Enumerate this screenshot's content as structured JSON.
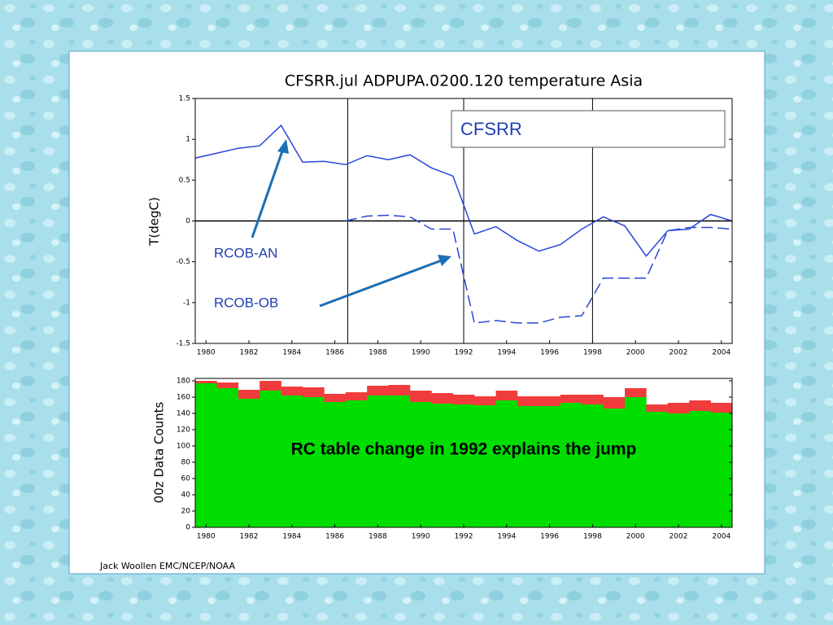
{
  "chart_data": [
    {
      "type": "line",
      "title": "CFSRR.jul ADPUPA.0200.120 temperature Asia",
      "ylabel": "T(degC)",
      "legend_label": "CFSRR",
      "annotations": [
        "RCOB-AN",
        "RCOB-OB"
      ],
      "x": [
        1979.5,
        1980.5,
        1981.5,
        1982.5,
        1983.5,
        1984.5,
        1985.5,
        1986.5,
        1987.5,
        1988.5,
        1989.5,
        1990.5,
        1991.5,
        1992.5,
        1993.5,
        1994.5,
        1995.5,
        1996.5,
        1997.5,
        1998.5,
        1999.5,
        2000.5,
        2001.5,
        2002.5,
        2003.5,
        2004.5
      ],
      "series": [
        {
          "color": "#2a45d8",
          "dashed": false,
          "values": [
            0.77,
            0.83,
            0.89,
            0.92,
            1.17,
            0.72,
            0.73,
            0.69,
            0.8,
            0.75,
            0.81,
            0.65,
            0.55,
            -0.16,
            -0.07,
            -0.24,
            -0.37,
            -0.29,
            -0.1,
            0.05,
            -0.06,
            -0.43,
            -0.12,
            -0.1,
            0.08,
            0.0
          ]
        },
        {
          "color": "#2a45d8",
          "dashed": true,
          "values": [
            null,
            null,
            null,
            null,
            null,
            null,
            null,
            0.0,
            0.06,
            0.07,
            0.05,
            -0.1,
            -0.1,
            -1.25,
            -1.22,
            -1.25,
            -1.25,
            -1.18,
            -1.16,
            -0.7,
            -0.7,
            -0.7,
            -0.12,
            -0.08,
            -0.08,
            -0.1
          ]
        }
      ],
      "vlines": [
        1986.6,
        1992,
        1998
      ],
      "xlim": [
        1979.5,
        2004.5
      ],
      "ylim": [
        -1.5,
        1.5
      ],
      "xticks": [
        1980,
        1982,
        1984,
        1986,
        1988,
        1990,
        1992,
        1994,
        1996,
        1998,
        2000,
        2002,
        2004
      ],
      "yticks": [
        -1.5,
        -1,
        -0.5,
        0,
        0.5,
        1,
        1.5
      ]
    },
    {
      "type": "bar",
      "stacked": true,
      "ylabel": "00z Data Counts",
      "annotation": "RC table change in 1992 explains the jump",
      "x": [
        1980,
        1981,
        1982,
        1983,
        1984,
        1985,
        1986,
        1987,
        1988,
        1989,
        1990,
        1991,
        1992,
        1993,
        1994,
        1995,
        1996,
        1997,
        1998,
        1999,
        2000,
        2001,
        2002,
        2003,
        2004
      ],
      "series": [
        {
          "color": "#00dd00",
          "values": [
            177,
            171,
            158,
            168,
            162,
            160,
            154,
            156,
            162,
            162,
            154,
            152,
            151,
            150,
            156,
            149,
            149,
            153,
            151,
            146,
            160,
            142,
            140,
            143,
            141
          ]
        },
        {
          "color": "#f03c3c",
          "values": [
            3,
            7,
            11,
            12,
            11,
            12,
            10,
            10,
            12,
            13,
            14,
            13,
            12,
            11,
            12,
            12,
            12,
            10,
            12,
            14,
            11,
            9,
            13,
            13,
            12
          ]
        }
      ],
      "xlim": [
        1979.5,
        2004.5
      ],
      "ylim": [
        0,
        183
      ],
      "xticks": [
        1980,
        1982,
        1984,
        1986,
        1988,
        1990,
        1992,
        1994,
        1996,
        1998,
        2000,
        2002,
        2004
      ],
      "yticks": [
        0,
        20,
        40,
        60,
        80,
        100,
        120,
        140,
        160,
        180
      ]
    }
  ],
  "footer": "Jack Woollen EMC/NCEP/NOAA"
}
